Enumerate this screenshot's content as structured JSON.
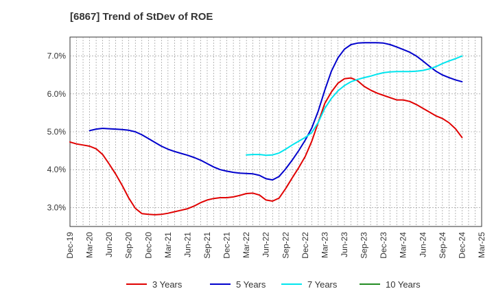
{
  "chart_data": {
    "type": "line",
    "title": "[6867]  Trend of StDev of ROE",
    "xlabel": "",
    "ylabel": "",
    "x_ticks": [
      "Dec-19",
      "Mar-20",
      "Jun-20",
      "Sep-20",
      "Dec-20",
      "Mar-21",
      "Jun-21",
      "Sep-21",
      "Dec-21",
      "Mar-22",
      "Jun-22",
      "Sep-22",
      "Dec-22",
      "Mar-23",
      "Jun-23",
      "Sep-23",
      "Dec-23",
      "Mar-24",
      "Jun-24",
      "Sep-24",
      "Dec-24",
      "Mar-25"
    ],
    "y_ticks": [
      "3.0%",
      "4.0%",
      "5.0%",
      "6.0%",
      "7.0%"
    ],
    "y_tick_values": [
      3.0,
      4.0,
      5.0,
      6.0,
      7.0
    ],
    "ylim": [
      2.5,
      7.5
    ],
    "grid": true,
    "legend_position": "bottom",
    "series": [
      {
        "name": "3 Years",
        "color": "#e00000",
        "x": [
          "Dec-19",
          "Jan-20",
          "Feb-20",
          "Mar-20",
          "Apr-20",
          "May-20",
          "Jun-20",
          "Jul-20",
          "Aug-20",
          "Sep-20",
          "Oct-20",
          "Nov-20",
          "Dec-20",
          "Jan-21",
          "Feb-21",
          "Mar-21",
          "Apr-21",
          "May-21",
          "Jun-21",
          "Jul-21",
          "Aug-21",
          "Sep-21",
          "Oct-21",
          "Nov-21",
          "Dec-21",
          "Jan-22",
          "Feb-22",
          "Mar-22",
          "Apr-22",
          "May-22",
          "Jun-22",
          "Jul-22",
          "Aug-22",
          "Sep-22",
          "Oct-22",
          "Nov-22",
          "Dec-22",
          "Jan-23",
          "Feb-23",
          "Mar-23",
          "Apr-23",
          "May-23",
          "Jun-23",
          "Jul-23",
          "Aug-23",
          "Sep-23",
          "Oct-23",
          "Nov-23",
          "Dec-23",
          "Jan-24",
          "Feb-24",
          "Mar-24",
          "Apr-24",
          "May-24",
          "Jun-24",
          "Jul-24",
          "Aug-24",
          "Sep-24",
          "Oct-24",
          "Nov-24",
          "Dec-24"
        ],
        "values": [
          4.73,
          4.68,
          4.65,
          4.62,
          4.55,
          4.4,
          4.15,
          3.88,
          3.58,
          3.25,
          2.98,
          2.84,
          2.82,
          2.81,
          2.82,
          2.85,
          2.89,
          2.93,
          2.97,
          3.04,
          3.13,
          3.2,
          3.24,
          3.26,
          3.26,
          3.28,
          3.32,
          3.37,
          3.38,
          3.33,
          3.2,
          3.17,
          3.25,
          3.5,
          3.78,
          4.05,
          4.35,
          4.75,
          5.25,
          5.75,
          6.05,
          6.28,
          6.4,
          6.42,
          6.35,
          6.2,
          6.1,
          6.02,
          5.96,
          5.9,
          5.84,
          5.84,
          5.8,
          5.72,
          5.62,
          5.52,
          5.42,
          5.35,
          5.24,
          5.08,
          4.85
        ]
      },
      {
        "name": "5 Years",
        "color": "#0000cc",
        "x": [
          "Mar-20",
          "Apr-20",
          "May-20",
          "Jun-20",
          "Jul-20",
          "Aug-20",
          "Sep-20",
          "Oct-20",
          "Nov-20",
          "Dec-20",
          "Jan-21",
          "Feb-21",
          "Mar-21",
          "Apr-21",
          "May-21",
          "Jun-21",
          "Jul-21",
          "Aug-21",
          "Sep-21",
          "Oct-21",
          "Nov-21",
          "Dec-21",
          "Jan-22",
          "Feb-22",
          "Mar-22",
          "Apr-22",
          "May-22",
          "Jun-22",
          "Jul-22",
          "Aug-22",
          "Sep-22",
          "Oct-22",
          "Nov-22",
          "Dec-22",
          "Jan-23",
          "Feb-23",
          "Mar-23",
          "Apr-23",
          "May-23",
          "Jun-23",
          "Jul-23",
          "Aug-23",
          "Sep-23",
          "Oct-23",
          "Nov-23",
          "Dec-23",
          "Jan-24",
          "Feb-24",
          "Mar-24",
          "Apr-24",
          "May-24",
          "Jun-24",
          "Jul-24",
          "Aug-24",
          "Sep-24",
          "Oct-24",
          "Nov-24",
          "Dec-24"
        ],
        "values": [
          5.03,
          5.07,
          5.09,
          5.08,
          5.07,
          5.06,
          5.04,
          5.0,
          4.92,
          4.82,
          4.72,
          4.62,
          4.54,
          4.48,
          4.43,
          4.38,
          4.32,
          4.25,
          4.16,
          4.07,
          4.0,
          3.96,
          3.93,
          3.91,
          3.9,
          3.89,
          3.85,
          3.76,
          3.73,
          3.82,
          4.02,
          4.25,
          4.5,
          4.78,
          5.1,
          5.55,
          6.1,
          6.6,
          6.95,
          7.18,
          7.3,
          7.34,
          7.35,
          7.35,
          7.35,
          7.34,
          7.3,
          7.24,
          7.17,
          7.1,
          7.0,
          6.87,
          6.73,
          6.6,
          6.5,
          6.43,
          6.37,
          6.32
        ]
      },
      {
        "name": "7 Years",
        "color": "#00e5ee",
        "x": [
          "Mar-22",
          "Apr-22",
          "May-22",
          "Jun-22",
          "Jul-22",
          "Aug-22",
          "Sep-22",
          "Oct-22",
          "Nov-22",
          "Dec-22",
          "Jan-23",
          "Feb-23",
          "Mar-23",
          "Apr-23",
          "May-23",
          "Jun-23",
          "Jul-23",
          "Aug-23",
          "Sep-23",
          "Oct-23",
          "Nov-23",
          "Dec-23",
          "Jan-24",
          "Feb-24",
          "Mar-24",
          "Apr-24",
          "May-24",
          "Jun-24",
          "Jul-24",
          "Aug-24",
          "Sep-24",
          "Oct-24",
          "Nov-24",
          "Dec-24"
        ],
        "values": [
          4.39,
          4.4,
          4.4,
          4.38,
          4.39,
          4.44,
          4.54,
          4.65,
          4.75,
          4.85,
          4.98,
          5.25,
          5.62,
          5.88,
          6.08,
          6.22,
          6.32,
          6.38,
          6.43,
          6.47,
          6.52,
          6.56,
          6.58,
          6.59,
          6.59,
          6.59,
          6.6,
          6.62,
          6.66,
          6.72,
          6.8,
          6.87,
          6.93,
          7.0
        ]
      },
      {
        "name": "10 Years",
        "color": "#228b22",
        "x": [],
        "values": []
      }
    ]
  }
}
